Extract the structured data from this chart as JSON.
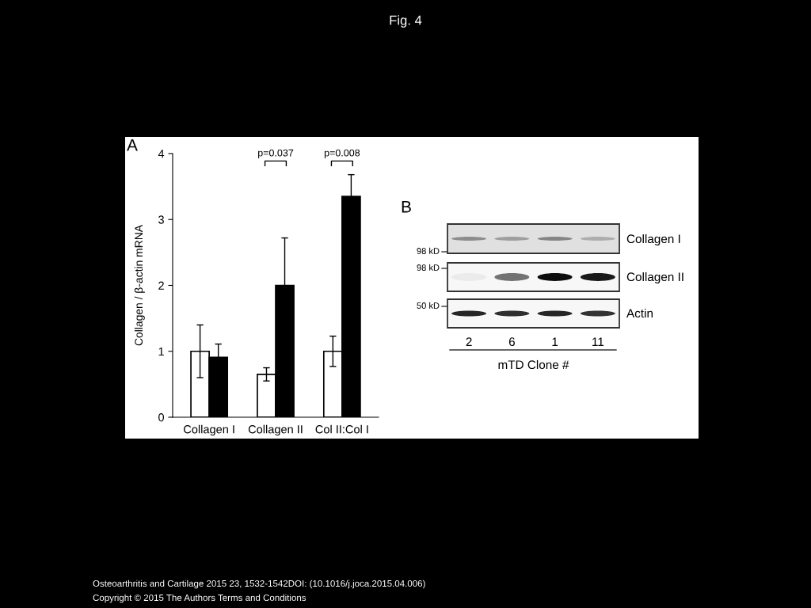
{
  "chart_data": [
    {
      "type": "bar",
      "title": "A",
      "ylabel": "Collagen / β-actin mRNA",
      "categories": [
        "Collagen I",
        "Collagen II",
        "Col II:Col I"
      ],
      "series": [
        {
          "color": "#ffffff",
          "values": [
            1.0,
            0.65,
            1.0
          ],
          "errors": [
            0.4,
            0.1,
            0.23
          ]
        },
        {
          "color": "#000000",
          "values": [
            0.91,
            2.0,
            3.35
          ],
          "errors": [
            0.2,
            0.72,
            0.33
          ]
        }
      ],
      "ylim": [
        0,
        4
      ],
      "yticks": [
        0,
        1,
        2,
        3,
        4
      ],
      "annotations": [
        "p=0.037",
        "p=0.008"
      ]
    },
    {
      "type": "other",
      "title": "B",
      "categories": [
        "2",
        "6",
        "1",
        "11"
      ],
      "xlabel": "mTD Clone #",
      "annotations": [
        "Collagen I",
        "Collagen II",
        "Actin",
        "98 kD",
        "98 kD",
        "50 kD"
      ]
    },
    {
      "type": "other",
      "title": "Fig. 4",
      "annotations": [
        "Osteoarthritis and Cartilage 2015 23, 1532-1542DOI: (10.1016/j.joca.2015.04.006)",
        "Copyright © 2015 The Authors Terms and Conditions"
      ]
    }
  ]
}
